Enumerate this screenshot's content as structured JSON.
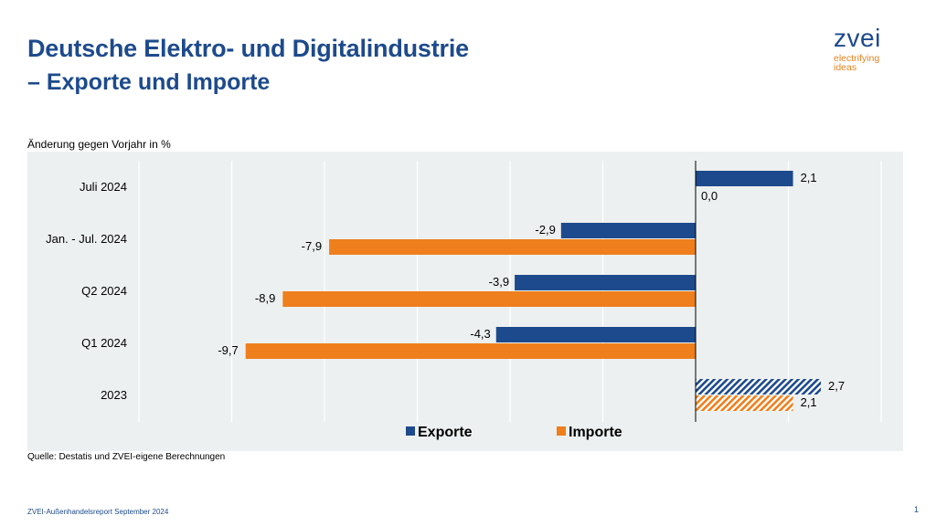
{
  "header": {
    "title": "Deutsche Elektro- und Digitalindustrie",
    "subtitle": "– Exporte und Importe"
  },
  "logo": {
    "word": "zvei",
    "tagline_1": "electrifying",
    "tagline_2": "ideas"
  },
  "colors": {
    "exporte": "#1d4a8c",
    "importe": "#ee7f1c",
    "panel": "#edf0f0",
    "brand": "#1d4a8c",
    "accent": "#e5821d"
  },
  "chart_data": {
    "type": "bar",
    "orientation": "horizontal",
    "unit_label": "Änderung gegen Vorjahr in %",
    "categories": [
      "Juli 2024",
      "Jan. - Jul. 2024",
      "Q2 2024",
      "Q1 2024",
      "2023"
    ],
    "series": [
      {
        "name": "Exporte",
        "values": [
          2.1,
          -2.9,
          -3.9,
          -4.3,
          2.7
        ],
        "value_labels": [
          "2,1",
          "-2,9",
          "-3,9",
          "-4,3",
          "2,7"
        ]
      },
      {
        "name": "Importe",
        "values": [
          0.0,
          -7.9,
          -8.9,
          -9.7,
          2.1
        ],
        "value_labels": [
          "0,0",
          "-7,9",
          "-8,9",
          "-9,7",
          "2,1"
        ]
      }
    ],
    "hatched_categories": [
      "2023"
    ],
    "xlim": [
      -12,
      4
    ],
    "grid": true,
    "legend": "bottom"
  },
  "source": "Quelle: Destatis und ZVEI-eigene Berechnungen",
  "footer": {
    "report": "ZVEI-Außenhandelsreport September 2024",
    "page": "1"
  }
}
